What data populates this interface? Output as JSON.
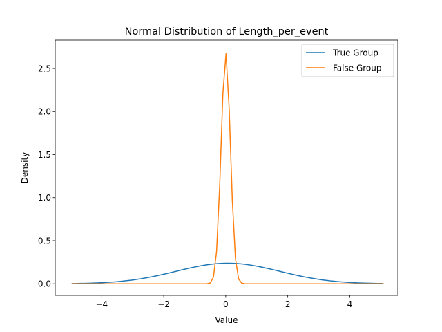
{
  "chart_data": {
    "type": "line",
    "title": "Normal Distribution of Length_per_event",
    "xlabel": "Value",
    "ylabel": "Density",
    "xlim": [
      -5.5,
      5.55
    ],
    "ylim": [
      -0.135,
      2.83
    ],
    "xticks": [
      -4,
      -2,
      0,
      2,
      4
    ],
    "xtick_labels": [
      "−4",
      "−2",
      "0",
      "2",
      "4"
    ],
    "yticks": [
      0.0,
      0.5,
      1.0,
      1.5,
      2.0,
      2.5
    ],
    "ytick_labels": [
      "0.0",
      "0.5",
      "1.0",
      "1.5",
      "2.0",
      "2.5"
    ],
    "grid": false,
    "legend_position": "top-right",
    "x_range": [
      -4.97,
      5.09
    ],
    "series": [
      {
        "name": "True Group",
        "color": "#1f77b4",
        "distribution": "normal",
        "mean": 0.07,
        "std": 1.67
      },
      {
        "name": "False Group",
        "color": "#ff7f0e",
        "distribution": "normal",
        "mean": 0.0,
        "std": 0.149
      }
    ]
  }
}
